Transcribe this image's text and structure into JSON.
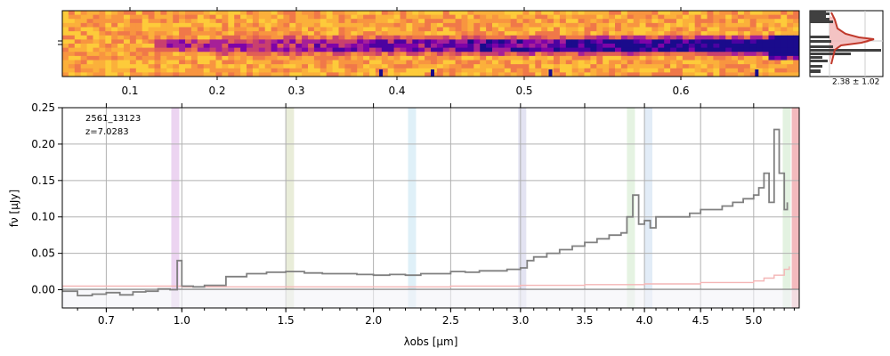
{
  "figure": {
    "label_id": "2561_13123",
    "label_z": "z=7.0283"
  },
  "chart_data": [
    {
      "type": "heatmap",
      "name": "2d-spectrum",
      "x_axis_ticks": [
        "0.1",
        "0.2",
        "0.3",
        "0.4",
        "0.5",
        "0.6"
      ],
      "colormap": "plasma",
      "trace_color": "#1a0b8c"
    },
    {
      "type": "line",
      "name": "profile",
      "annotation": "2.38 ± 1.02",
      "line_color": "#c0392b",
      "fill_color": "#f2b9b9"
    },
    {
      "type": "line",
      "name": "1d-spectrum",
      "xlabel": "λobs [μm]",
      "ylabel": "fν [μJy]",
      "xlim": [
        0.55,
        5.45
      ],
      "ylim": [
        -0.025,
        0.25
      ],
      "x_ticks": [
        "0.7",
        "1.0",
        "1.5",
        "2.0",
        "2.5",
        "3.0",
        "3.5",
        "4.0",
        "4.5",
        "5.0"
      ],
      "y_ticks": [
        "0.00",
        "0.05",
        "0.10",
        "0.15",
        "0.20",
        "0.25"
      ],
      "grid": true,
      "series": [
        {
          "color": "#808080",
          "x": [
            0.55,
            0.6,
            0.65,
            0.7,
            0.75,
            0.8,
            0.85,
            0.9,
            0.95,
            0.98,
            1.0,
            1.05,
            1.1,
            1.2,
            1.3,
            1.4,
            1.5,
            1.6,
            1.7,
            1.8,
            1.9,
            2.0,
            2.1,
            2.2,
            2.3,
            2.4,
            2.5,
            2.6,
            2.7,
            2.8,
            2.9,
            3.0,
            3.05,
            3.1,
            3.2,
            3.3,
            3.4,
            3.5,
            3.6,
            3.7,
            3.8,
            3.85,
            3.9,
            3.95,
            4.0,
            4.05,
            4.1,
            4.2,
            4.3,
            4.4,
            4.5,
            4.6,
            4.7,
            4.8,
            4.9,
            5.0,
            5.05,
            5.1,
            5.15,
            5.2,
            5.25,
            5.3,
            5.33
          ],
          "y": [
            -0.002,
            -0.008,
            -0.006,
            -0.004,
            -0.007,
            -0.003,
            -0.002,
            0.001,
            0.0,
            0.04,
            0.005,
            0.004,
            0.006,
            0.018,
            0.022,
            0.024,
            0.025,
            0.023,
            0.022,
            0.022,
            0.021,
            0.02,
            0.021,
            0.02,
            0.022,
            0.022,
            0.025,
            0.024,
            0.026,
            0.026,
            0.028,
            0.03,
            0.04,
            0.045,
            0.05,
            0.055,
            0.06,
            0.065,
            0.07,
            0.075,
            0.078,
            0.1,
            0.13,
            0.09,
            0.095,
            0.085,
            0.1,
            0.1,
            0.1,
            0.105,
            0.11,
            0.11,
            0.115,
            0.12,
            0.125,
            0.13,
            0.14,
            0.16,
            0.12,
            0.22,
            0.16,
            0.11,
            0.12
          ]
        },
        {
          "color": "#f4b6b6",
          "x": [
            0.55,
            1.0,
            1.5,
            2.0,
            2.5,
            3.0,
            3.5,
            4.0,
            4.5,
            5.0,
            5.1,
            5.2,
            5.3,
            5.35
          ],
          "y": [
            0.005,
            0.004,
            0.004,
            0.004,
            0.005,
            0.006,
            0.007,
            0.008,
            0.01,
            0.012,
            0.016,
            0.02,
            0.028,
            0.032
          ]
        }
      ],
      "line_bands": [
        {
          "x": 0.97,
          "color": "#e7c9ee"
        },
        {
          "x": 1.52,
          "color": "#e3e8cf"
        },
        {
          "x": 2.24,
          "color": "#d7ecf6"
        },
        {
          "x": 3.01,
          "color": "#dcdcef"
        },
        {
          "x": 3.88,
          "color": "#dff0db"
        },
        {
          "x": 4.03,
          "color": "#dbe7f5"
        },
        {
          "x": 5.32,
          "color": "#dcefd9"
        },
        {
          "x": 5.41,
          "color": "#f0a9ad"
        }
      ]
    }
  ]
}
